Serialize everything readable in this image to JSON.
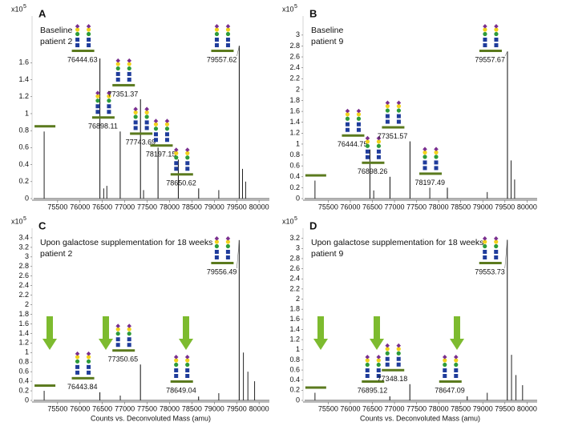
{
  "chart_data": [
    {
      "type": "spectrum",
      "panel": "A",
      "description": [
        "Baseline",
        "patient 2"
      ],
      "y_unit": {
        "base": "x10",
        "exponent": "5"
      },
      "xlim": [
        74930,
        80230
      ],
      "xticks": [
        75500,
        76000,
        76500,
        77000,
        77500,
        78000,
        78500,
        79000,
        79500,
        80000
      ],
      "ylim": [
        0,
        2.15
      ],
      "yticks": [
        0,
        0.2,
        0.4,
        0.6,
        0.8,
        1,
        1.2,
        1.4,
        1.6
      ],
      "peaks": {
        "x": [
          76444.63,
          76898.11,
          77351.37,
          77743.69,
          78197.15,
          78650.62,
          79557.62
        ],
        "values": [
          1.65,
          0.79,
          1.17,
          0.6,
          0.46,
          0.12,
          1.8
        ]
      },
      "minor_peaks": {
        "x": [
          75200,
          76530,
          76600,
          77420,
          79100,
          79630,
          79700
        ],
        "values": [
          0.79,
          0.12,
          0.15,
          0.1,
          0.1,
          0.35,
          0.2
        ]
      },
      "color": "#222222"
    },
    {
      "type": "spectrum",
      "panel": "B",
      "description": [
        "Baseline",
        "patient 9"
      ],
      "y_unit": {
        "base": "x10",
        "exponent": "5"
      },
      "xlim": [
        74930,
        80230
      ],
      "xticks": [
        75500,
        76000,
        76500,
        77000,
        77500,
        78000,
        78500,
        79000,
        79500,
        80000
      ],
      "ylim": [
        0,
        3.35
      ],
      "yticks": [
        0,
        0.2,
        0.4,
        0.6,
        0.8,
        1,
        1.2,
        1.4,
        1.6,
        1.8,
        2,
        2.2,
        2.4,
        2.6,
        2.8,
        3
      ],
      "peaks": {
        "x": [
          76444.75,
          76898.26,
          77351.57,
          78197.49,
          79557.67
        ],
        "values": [
          0.9,
          0.4,
          1.05,
          0.2,
          2.7
        ]
      },
      "minor_peaks": {
        "x": [
          75200,
          76530,
          77800,
          79100,
          79640,
          79720
        ],
        "values": [
          0.33,
          0.15,
          0.2,
          0.12,
          0.7,
          0.35
        ]
      },
      "color": "#222222"
    },
    {
      "type": "spectrum",
      "panel": "C",
      "description": [
        "Upon galactose supplementation for 18 weeks",
        "patient 2"
      ],
      "y_unit": {
        "base": "x10",
        "exponent": "5"
      },
      "xlabel": "Counts vs. Deconvoluted Mass (amu)",
      "xlim": [
        74930,
        80230
      ],
      "xticks": [
        75500,
        76000,
        76500,
        77000,
        77500,
        78000,
        78500,
        79000,
        79500,
        80000
      ],
      "ylim": [
        0,
        3.6
      ],
      "yticks": [
        0,
        0.2,
        0.4,
        0.6,
        0.8,
        1,
        1.2,
        1.4,
        1.6,
        1.8,
        2,
        2.2,
        2.4,
        2.6,
        2.8,
        3,
        3.2,
        3.4
      ],
      "peaks": {
        "x": [
          76443.84,
          77350.65,
          78649.04,
          79556.49
        ],
        "values": [
          0.17,
          0.75,
          0.08,
          3.35
        ]
      },
      "minor_peaks": {
        "x": [
          75200,
          76900,
          79100,
          79650,
          79750,
          79900
        ],
        "values": [
          0.2,
          0.1,
          0.15,
          1.0,
          0.6,
          0.4
        ]
      },
      "color": "#222222"
    },
    {
      "type": "spectrum",
      "panel": "D",
      "description": [
        "Upon galactose supplementation for 18 weeks",
        "patient 9"
      ],
      "y_unit": {
        "base": "x10",
        "exponent": "5"
      },
      "xlabel": "Counts vs. Deconvoluted Mass (amu)",
      "xlim": [
        74930,
        80230
      ],
      "xticks": [
        75500,
        76000,
        76500,
        77000,
        77500,
        78000,
        78500,
        79000,
        79500,
        80000
      ],
      "ylim": [
        0,
        3.4
      ],
      "yticks": [
        0,
        0.2,
        0.4,
        0.6,
        0.8,
        1,
        1.2,
        1.4,
        1.6,
        1.8,
        2,
        2.2,
        2.4,
        2.6,
        2.8,
        3,
        3.2
      ],
      "peaks": {
        "x": [
          76895.12,
          77348.18,
          78647.09,
          79553.73
        ],
        "values": [
          0.08,
          0.32,
          0.08,
          3.17
        ]
      },
      "minor_peaks": {
        "x": [
          75200,
          79100,
          79650,
          79750,
          79900
        ],
        "values": [
          0.15,
          0.15,
          0.9,
          0.5,
          0.3
        ]
      },
      "color": "#222222"
    }
  ]
}
